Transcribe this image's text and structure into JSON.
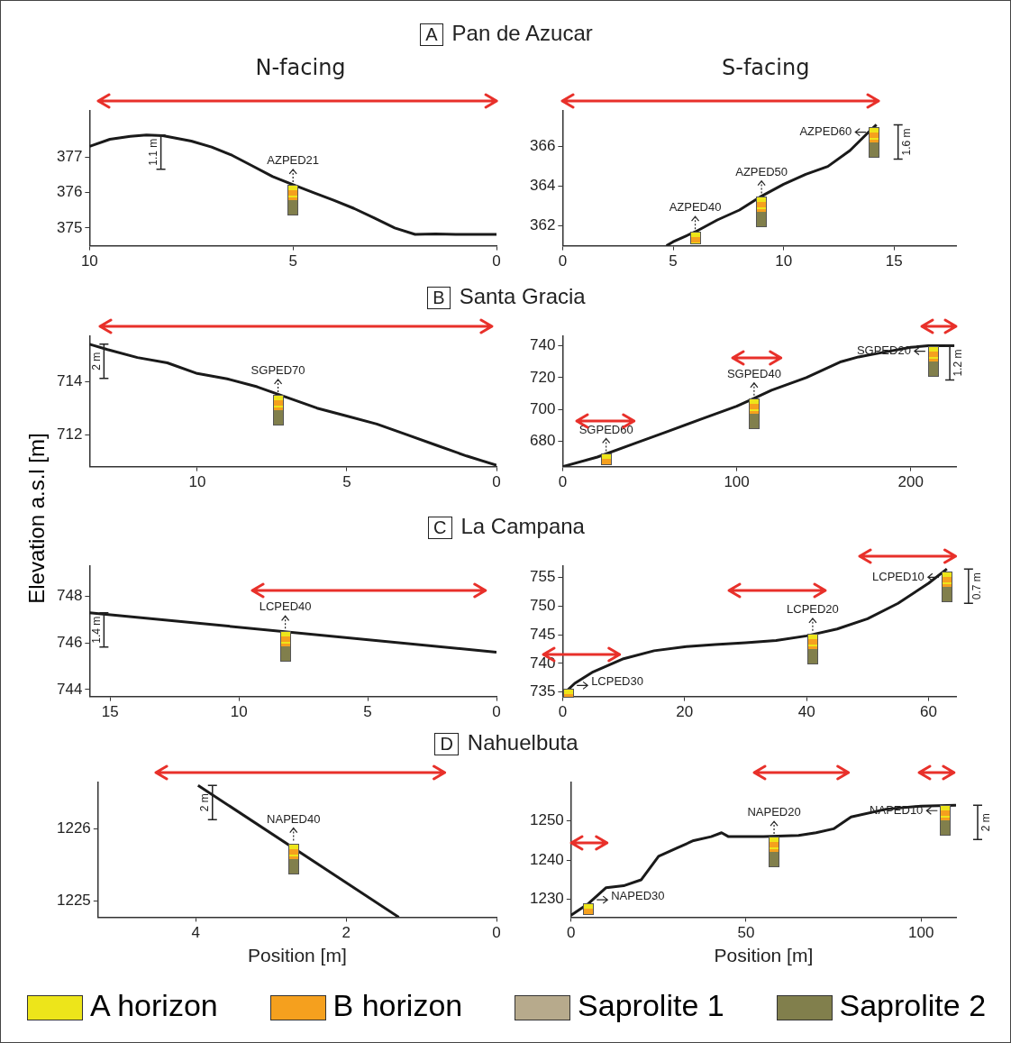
{
  "chart_data": [
    {
      "type": "line",
      "title": "A Pan de Azucar",
      "subtitle": "N-facing",
      "color": "#1a1a1a",
      "xlim": [
        10,
        0
      ],
      "xticks": [
        10,
        5,
        0
      ],
      "ylim": [
        374.5,
        378.3
      ],
      "yticks": [
        375,
        376,
        377
      ],
      "x": [
        10,
        9.5,
        9,
        8.6,
        8.2,
        7.5,
        7,
        6.5,
        6,
        5.5,
        5,
        4.5,
        4,
        3.5,
        3,
        2.5,
        2,
        1.5,
        1,
        0.5,
        0
      ],
      "values": [
        377.3,
        377.5,
        377.58,
        377.62,
        377.6,
        377.45,
        377.28,
        377.05,
        376.75,
        376.45,
        376.22,
        376.0,
        375.78,
        375.55,
        375.28,
        375.0,
        374.82,
        374.83,
        374.82,
        374.82,
        374.82
      ],
      "annotations": [
        {
          "text": "AZPED21",
          "x": 5,
          "y": 376.22
        },
        "1.1 m"
      ]
    },
    {
      "type": "line",
      "subtitle": "S-facing",
      "color": "#1a1a1a",
      "xlim": [
        0,
        17.8
      ],
      "xticks": [
        0,
        5,
        10,
        15
      ],
      "ylim": [
        361,
        367.8
      ],
      "yticks": [
        362,
        364,
        366
      ],
      "x": [
        4.7,
        5,
        6,
        7,
        8,
        9,
        10,
        11,
        12,
        13,
        14,
        14.2
      ],
      "values": [
        361,
        361.2,
        361.7,
        362.3,
        362.8,
        363.5,
        364.1,
        364.6,
        365.0,
        365.8,
        366.9,
        367.1
      ],
      "annotations": [
        {
          "text": "AZPED40",
          "x": 6,
          "y": 361.7
        },
        {
          "text": "AZPED50",
          "x": 9,
          "y": 363.5
        },
        {
          "text": "AZPED60",
          "x": 14.1,
          "y": 367.0
        },
        "1.6 m"
      ]
    },
    {
      "type": "line",
      "title": "B Santa Gracia",
      "color": "#1a1a1a",
      "xlim": [
        13.6,
        0
      ],
      "xticks": [
        10,
        5,
        0
      ],
      "ylim": [
        710.8,
        715.7
      ],
      "yticks": [
        712,
        714
      ],
      "ylabel": "Elevation a.s.l [m]",
      "x": [
        13.6,
        13,
        12,
        11,
        10,
        9,
        8,
        7,
        6,
        5,
        4,
        3,
        2,
        1,
        0
      ],
      "values": [
        715.4,
        715.2,
        714.9,
        714.7,
        714.3,
        714.1,
        713.8,
        713.4,
        713.0,
        712.7,
        712.4,
        712.0,
        711.6,
        711.2,
        710.85
      ],
      "annotations": [
        {
          "text": "SGPED70",
          "x": 7.3,
          "y": 713.5
        },
        "2 m"
      ]
    },
    {
      "type": "line",
      "color": "#1a1a1a",
      "xlim": [
        0,
        226
      ],
      "xticks": [
        0,
        100,
        200
      ],
      "ylim": [
        664,
        746
      ],
      "yticks": [
        680,
        700,
        720,
        740
      ],
      "x": [
        0,
        20,
        40,
        60,
        80,
        100,
        110,
        120,
        140,
        160,
        170,
        180,
        200,
        210,
        225
      ],
      "values": [
        664,
        670,
        678,
        686,
        694,
        702,
        707,
        712,
        720,
        730,
        733,
        735,
        739,
        740,
        740
      ],
      "annotations": [
        {
          "text": "SGPED60",
          "x": 25,
          "y": 672
        },
        {
          "text": "SGPED40",
          "x": 110,
          "y": 707
        },
        {
          "text": "SGPED20",
          "x": 213,
          "y": 740
        },
        "1.2 m"
      ]
    },
    {
      "type": "line",
      "title": "C La Campana",
      "color": "#1a1a1a",
      "xlim": [
        15.8,
        0
      ],
      "xticks": [
        15,
        10,
        5,
        0
      ],
      "ylim": [
        743.7,
        749.3
      ],
      "yticks": [
        744,
        746,
        748
      ],
      "x": [
        15.8,
        0
      ],
      "values": [
        747.3,
        745.6
      ],
      "annotations": [
        {
          "text": "LCPED40",
          "x": 8.2,
          "y": 746.5
        },
        "1.4 m"
      ]
    },
    {
      "type": "line",
      "color": "#1a1a1a",
      "xlim": [
        0,
        64.5
      ],
      "xticks": [
        0,
        20,
        40,
        60
      ],
      "ylim": [
        734.2,
        757
      ],
      "yticks": [
        735,
        740,
        745,
        750,
        755
      ],
      "x": [
        0,
        2,
        5,
        10,
        15,
        20,
        25,
        30,
        35,
        40,
        45,
        50,
        55,
        60,
        63
      ],
      "values": [
        734.5,
        736.5,
        738.5,
        740.8,
        742.2,
        742.9,
        743.3,
        743.6,
        744.0,
        744.8,
        746.0,
        747.8,
        750.5,
        754,
        756.5
      ],
      "annotations": [
        {
          "text": "LCPED30",
          "x": 1,
          "y": 735.5
        },
        {
          "text": "LCPED20",
          "x": 41,
          "y": 745.2
        },
        {
          "text": "LCPED10",
          "x": 63,
          "y": 756
        },
        "0.7 m"
      ]
    },
    {
      "type": "line",
      "title": "D Nahuelbuta",
      "color": "#1a1a1a",
      "xlim": [
        5.3,
        0
      ],
      "xticks": [
        4,
        2,
        0
      ],
      "ylim": [
        1224.77,
        1226.65
      ],
      "yticks": [
        1225,
        1226
      ],
      "xlabel": "Position [m]",
      "x": [
        3.97,
        1.3
      ],
      "values": [
        1226.61,
        1224.77
      ],
      "annotations": [
        {
          "text": "NAPED40",
          "x": 2.7,
          "y": 1225.8
        },
        "2 m"
      ]
    },
    {
      "type": "line",
      "color": "#1a1a1a",
      "xlim": [
        0,
        110
      ],
      "xticks": [
        0,
        50,
        100
      ],
      "ylim": [
        1225.5,
        1259.8
      ],
      "yticks": [
        1230,
        1240,
        1250
      ],
      "xlabel": "Position [m]",
      "x": [
        0,
        5,
        10,
        15,
        20,
        25,
        30,
        35,
        40,
        43,
        45,
        55,
        65,
        70,
        75,
        80,
        90,
        100,
        110
      ],
      "values": [
        1226,
        1229,
        1233,
        1233.5,
        1235,
        1241,
        1243,
        1245,
        1246,
        1247,
        1246,
        1246,
        1246.3,
        1247,
        1248,
        1251,
        1253,
        1253.8,
        1254
      ],
      "annotations": [
        {
          "text": "NAPED30",
          "x": 5,
          "y": 1229
        },
        {
          "text": "NAPED20",
          "x": 58,
          "y": 1246
        },
        {
          "text": "NAPED10",
          "x": 107,
          "y": 1254
        },
        "2 m"
      ]
    },
    {
      "type": "other",
      "annotations": [
        "A horizon",
        "B horizon",
        "Saprolite 1",
        "Saprolite 2"
      ],
      "colors": [
        "#ede51a",
        "#f5a01e",
        "#b7aa8c",
        "#817f4c"
      ]
    }
  ]
}
